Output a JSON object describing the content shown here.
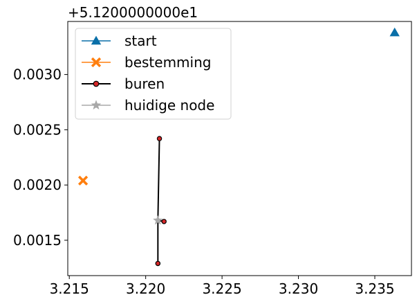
{
  "chart_data": {
    "type": "line",
    "offset_label": "+5.1200000000e1",
    "x_ticks": [
      "3.215",
      "3.220",
      "3.225",
      "3.230",
      "3.235"
    ],
    "y_ticks": [
      "0.0015",
      "0.0020",
      "0.0025",
      "0.0030"
    ],
    "xlim": [
      3.2149,
      3.2374
    ],
    "ylim": [
      51.20118,
      51.20348
    ],
    "legend_position": "upper-left",
    "series": [
      {
        "name": "start",
        "marker": "triangle",
        "color": "#0a6fa8",
        "linewidth": 1.5,
        "points": [
          {
            "x": 3.2363,
            "y": 51.20338
          }
        ]
      },
      {
        "name": "bestemming",
        "marker": "x-filled",
        "color": "#ff7f0e",
        "linewidth": 1.5,
        "points": [
          {
            "x": 3.2159,
            "y": 51.20204
          }
        ]
      },
      {
        "name": "buren",
        "marker": "circle",
        "color": "#000000",
        "marker_fill": "#d62728",
        "linewidth": 2,
        "connect_to_center": true,
        "points": [
          {
            "x": 3.2209,
            "y": 51.20242
          },
          {
            "x": 3.2212,
            "y": 51.20167
          },
          {
            "x": 3.2208,
            "y": 51.20129
          }
        ]
      },
      {
        "name": "huidige node",
        "marker": "star",
        "color": "#a8a8a8",
        "linewidth": 1.5,
        "points": [
          {
            "x": 3.2208,
            "y": 51.20168
          }
        ]
      }
    ]
  }
}
